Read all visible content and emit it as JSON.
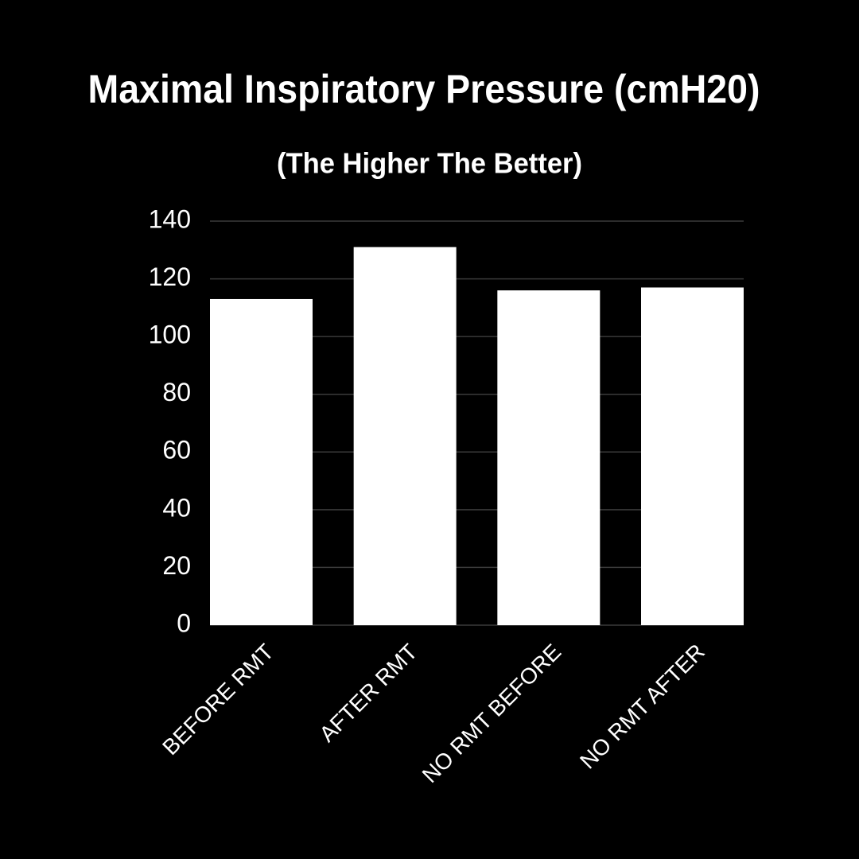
{
  "chart_data": {
    "type": "bar",
    "title": "Maximal Inspiratory Pressure (cmH20)",
    "subtitle": "(The Higher The Better)",
    "categories": [
      "BEFORE RMT",
      "AFTER RMT",
      "NO RMT BEFORE",
      "NO RMT AFTER"
    ],
    "values": [
      113,
      131,
      116,
      117
    ],
    "color": "#ffffff",
    "ylim": [
      0,
      140
    ],
    "yticks": [
      0,
      20,
      40,
      60,
      80,
      100,
      120,
      140
    ],
    "grid": true
  }
}
